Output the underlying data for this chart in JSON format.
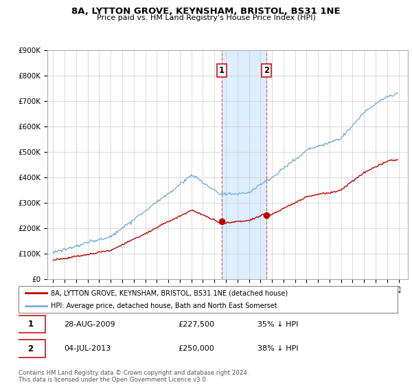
{
  "title": "8A, LYTTON GROVE, KEYNSHAM, BRISTOL, BS31 1NE",
  "subtitle": "Price paid vs. HM Land Registry's House Price Index (HPI)",
  "legend_line1": "8A, LYTTON GROVE, KEYNSHAM, BRISTOL, BS31 1NE (detached house)",
  "legend_line2": "HPI: Average price, detached house, Bath and North East Somerset",
  "transaction1_date": "28-AUG-2009",
  "transaction1_price": "£227,500",
  "transaction1_pct": "35% ↓ HPI",
  "transaction2_date": "04-JUL-2013",
  "transaction2_price": "£250,000",
  "transaction2_pct": "38% ↓ HPI",
  "footer": "Contains HM Land Registry data © Crown copyright and database right 2024.\nThis data is licensed under the Open Government Licence v3.0.",
  "hpi_color": "#7aadd4",
  "price_color": "#bb0000",
  "shade_color": "#ddeeff",
  "ylim": [
    0,
    900000
  ],
  "yticks": [
    0,
    100000,
    200000,
    300000,
    400000,
    500000,
    600000,
    700000,
    800000,
    900000
  ],
  "ytick_labels": [
    "£0",
    "£100K",
    "£200K",
    "£300K",
    "£400K",
    "£500K",
    "£600K",
    "£700K",
    "£800K",
    "£900K"
  ],
  "xlim_start": 1994.5,
  "xlim_end": 2025.8,
  "t1_year": 2009.65,
  "t2_year": 2013.5,
  "t1_price": 227500,
  "t2_price": 250000
}
